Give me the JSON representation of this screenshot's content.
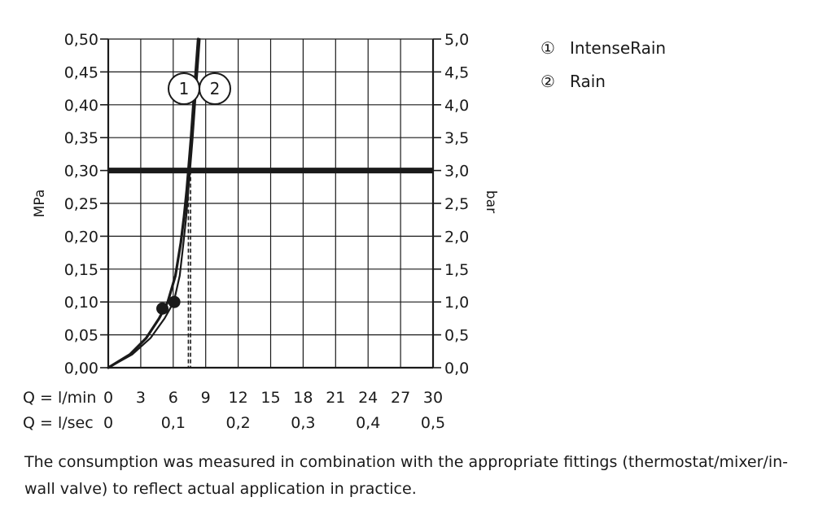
{
  "chart_data": {
    "type": "line",
    "y_left_label": "MPa",
    "y_right_label": "bar",
    "y_left_range": [
      0,
      0.5
    ],
    "y_left_ticks": [
      "0,00",
      "0,05",
      "0,10",
      "0,15",
      "0,20",
      "0,25",
      "0,30",
      "0,35",
      "0,40",
      "0,45",
      "0,50"
    ],
    "y_right_ticks": [
      "0,0",
      "0,5",
      "1,0",
      "1,5",
      "2,0",
      "2,5",
      "3,0",
      "3,5",
      "4,0",
      "4,5",
      "5,0"
    ],
    "x_range": [
      0,
      30
    ],
    "x_row1_label": "Q = l/min",
    "x_row1_ticks": [
      {
        "value": 0,
        "label": "0"
      },
      {
        "value": 3,
        "label": "3"
      },
      {
        "value": 6,
        "label": "6"
      },
      {
        "value": 9,
        "label": "9"
      },
      {
        "value": 12,
        "label": "12"
      },
      {
        "value": 15,
        "label": "15"
      },
      {
        "value": 18,
        "label": "18"
      },
      {
        "value": 21,
        "label": "21"
      },
      {
        "value": 24,
        "label": "24"
      },
      {
        "value": 27,
        "label": "27"
      },
      {
        "value": 30,
        "label": "30"
      }
    ],
    "x_row2_label": "Q = l/sec",
    "x_row2_ticks": [
      {
        "value": 0,
        "label": "0"
      },
      {
        "value": 6,
        "label": "0,1"
      },
      {
        "value": 12,
        "label": "0,2"
      },
      {
        "value": 18,
        "label": "0,3"
      },
      {
        "value": 24,
        "label": "0,4"
      },
      {
        "value": 30,
        "label": "0,5"
      }
    ],
    "grid": true,
    "reference_line": {
      "y": 0.3
    },
    "series": [
      {
        "name": "IntenseRain",
        "marker": "①",
        "points": [
          [
            0,
            0
          ],
          [
            2,
            0.02
          ],
          [
            3.5,
            0.045
          ],
          [
            4.7,
            0.075
          ],
          [
            5.5,
            0.1
          ],
          [
            6.2,
            0.14
          ],
          [
            6.7,
            0.19
          ],
          [
            7,
            0.23
          ],
          [
            7.25,
            0.27
          ],
          [
            7.4,
            0.3
          ],
          [
            7.65,
            0.35
          ],
          [
            7.95,
            0.42
          ],
          [
            8.3,
            0.5
          ]
        ],
        "dot": [
          5,
          0.09
        ],
        "flow_at_ref": 7.4
      },
      {
        "name": "Rain",
        "marker": "②",
        "points": [
          [
            0,
            0
          ],
          [
            2.2,
            0.02
          ],
          [
            3.9,
            0.045
          ],
          [
            5.2,
            0.075
          ],
          [
            6.05,
            0.1
          ],
          [
            6.6,
            0.14
          ],
          [
            6.95,
            0.19
          ],
          [
            7.2,
            0.23
          ],
          [
            7.4,
            0.27
          ],
          [
            7.55,
            0.3
          ],
          [
            7.8,
            0.35
          ],
          [
            8.1,
            0.42
          ],
          [
            8.45,
            0.5
          ]
        ],
        "dot": [
          6.1,
          0.1
        ],
        "flow_at_ref": 7.6
      }
    ]
  },
  "legend": [
    {
      "symbol": "①",
      "label": "IntenseRain"
    },
    {
      "symbol": "②",
      "label": "Rain"
    }
  ],
  "callouts": [
    "1",
    "2"
  ],
  "note": "The consumption was measured in combination with the appropriate fittings (thermostat/mixer/in-wall valve) to reflect actual application in practice."
}
